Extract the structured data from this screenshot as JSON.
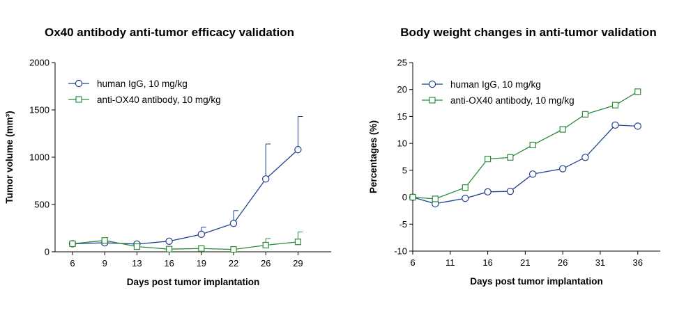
{
  "chart_data": [
    {
      "type": "line",
      "title": "Ox40 antibody anti-tumor efficacy validation",
      "xlabel": "Days post tumor implantation",
      "ylabel": "Tumor volume (mm³)",
      "categories": [
        "6",
        "9",
        "13",
        "16",
        "19",
        "22",
        "26",
        "29"
      ],
      "ylim": [
        0,
        2000
      ],
      "yticks": [
        "0",
        "500",
        "1000",
        "1500",
        "2000"
      ],
      "series": [
        {
          "name": "human IgG, 10 mg/kg",
          "color": "#1f3f8f",
          "marker": "circle",
          "values": [
            85,
            95,
            82,
            112,
            185,
            300,
            770,
            1080
          ],
          "error_upper": [
            null,
            null,
            null,
            null,
            260,
            435,
            1140,
            1430
          ]
        },
        {
          "name": "anti-OX40 antibody, 10 mg/kg",
          "color": "#2e8b3a",
          "marker": "square",
          "values": [
            85,
            120,
            55,
            28,
            35,
            25,
            70,
            105
          ],
          "error_upper": [
            null,
            null,
            null,
            null,
            null,
            null,
            140,
            210
          ]
        }
      ],
      "legend": "top-left"
    },
    {
      "type": "line",
      "title": "Body weight changes in anti-tumor validation",
      "xlabel": "Days post tumor implantation",
      "ylabel": "Percentages (%)",
      "xlim": [
        6,
        39
      ],
      "xticks": [
        "6",
        "11",
        "16",
        "21",
        "26",
        "31",
        "36"
      ],
      "ylim": [
        -10,
        25
      ],
      "yticks": [
        "-10",
        "-5",
        "0",
        "5",
        "10",
        "15",
        "20",
        "25"
      ],
      "series": [
        {
          "name": "human IgG, 10 mg/kg",
          "color": "#1f3f8f",
          "marker": "circle",
          "x": [
            6,
            9,
            13,
            16,
            19,
            22,
            26,
            29,
            33,
            36
          ],
          "values": [
            0,
            -1.2,
            -0.2,
            1.0,
            1.1,
            4.3,
            5.3,
            7.4,
            13.4,
            13.2
          ]
        },
        {
          "name": "anti-OX40 antibody, 10 mg/kg",
          "color": "#2e8b3a",
          "marker": "square",
          "x": [
            6,
            9,
            13,
            16,
            19,
            22,
            26,
            29,
            33,
            36
          ],
          "values": [
            0,
            -0.3,
            1.8,
            7.1,
            7.4,
            9.7,
            12.6,
            15.4,
            17.1,
            19.6
          ]
        }
      ],
      "legend": "top-left"
    }
  ]
}
